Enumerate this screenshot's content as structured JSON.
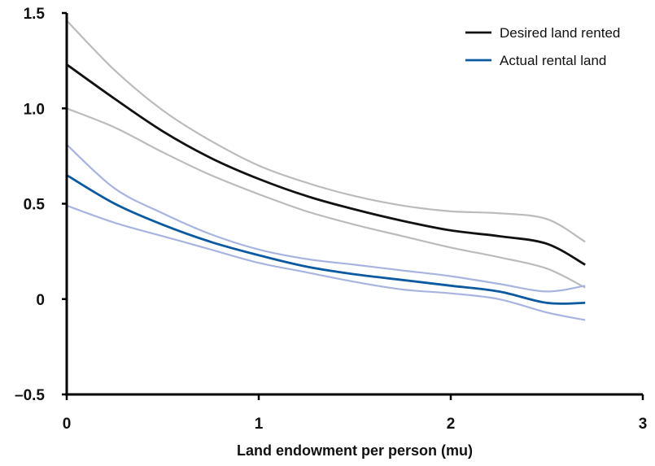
{
  "chart_data": {
    "type": "line",
    "xlabel": "Land endowment per person (mu)",
    "ylabel": "",
    "xlim": [
      0,
      3
    ],
    "ylim": [
      -0.5,
      1.5
    ],
    "x_ticks": [
      "0",
      "1",
      "2",
      "3"
    ],
    "y_ticks": [
      "–0.5",
      "0",
      "0.5",
      "1.0",
      "1.5"
    ],
    "legend_position": "top-right",
    "grid": false,
    "series": [
      {
        "name": "Desired land rented",
        "color": "#111111",
        "x": [
          0,
          0.25,
          0.5,
          0.75,
          1.0,
          1.25,
          1.5,
          1.75,
          2.0,
          2.25,
          2.5,
          2.7
        ],
        "y": [
          1.23,
          1.05,
          0.88,
          0.74,
          0.63,
          0.54,
          0.47,
          0.41,
          0.36,
          0.33,
          0.29,
          0.18
        ],
        "ci_color": "#bbbbbb",
        "upper": [
          1.46,
          1.2,
          0.99,
          0.83,
          0.7,
          0.61,
          0.54,
          0.49,
          0.46,
          0.45,
          0.42,
          0.3
        ],
        "lower": [
          1.0,
          0.9,
          0.77,
          0.65,
          0.55,
          0.46,
          0.39,
          0.33,
          0.27,
          0.22,
          0.16,
          0.06
        ]
      },
      {
        "name": "Actual rental land",
        "color": "#0b5aa0",
        "x": [
          0,
          0.25,
          0.5,
          0.75,
          1.0,
          1.25,
          1.5,
          1.75,
          2.0,
          2.25,
          2.5,
          2.7
        ],
        "y": [
          0.65,
          0.5,
          0.39,
          0.3,
          0.23,
          0.17,
          0.13,
          0.1,
          0.07,
          0.04,
          -0.02,
          -0.02
        ],
        "ci_color": "#a7b4e0",
        "upper": [
          0.81,
          0.58,
          0.45,
          0.34,
          0.26,
          0.21,
          0.18,
          0.15,
          0.12,
          0.08,
          0.04,
          0.07
        ],
        "lower": [
          0.49,
          0.4,
          0.33,
          0.26,
          0.19,
          0.14,
          0.09,
          0.05,
          0.03,
          0.0,
          -0.07,
          -0.11
        ]
      }
    ]
  }
}
